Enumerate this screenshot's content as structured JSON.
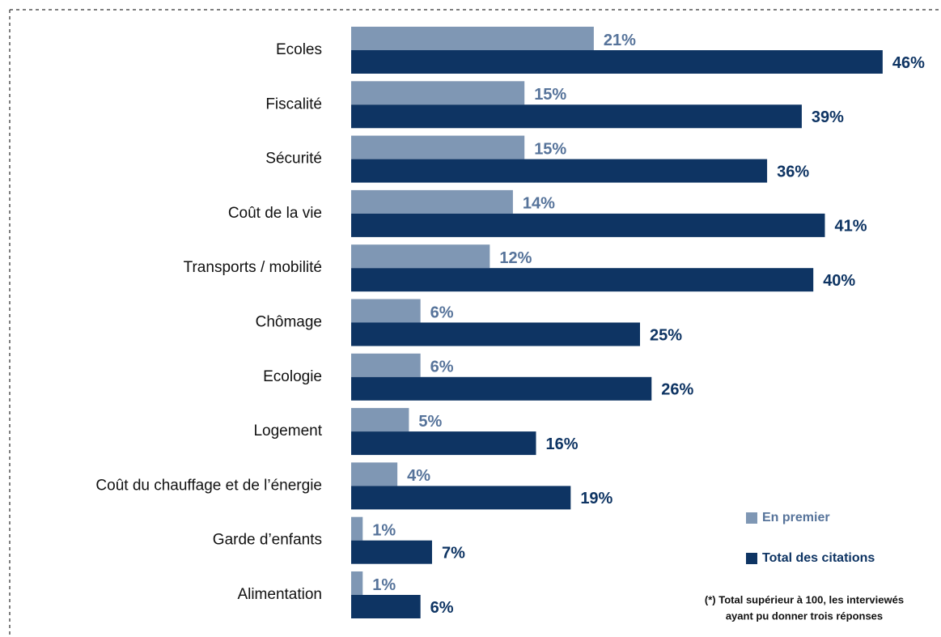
{
  "chart_data": {
    "type": "hbar",
    "categories": [
      "Ecoles",
      "Fiscalité",
      "Sécurité",
      "Coût de la vie",
      "Transports / mobilité",
      "Chômage",
      "Ecologie",
      "Logement",
      "Coût du chauffage et de l’énergie",
      "Garde d’enfants",
      "Alimentation"
    ],
    "series": [
      {
        "name": "En premier",
        "color": "#7f97b4",
        "label_color": "#56739a",
        "values": [
          21,
          15,
          15,
          14,
          12,
          6,
          6,
          5,
          4,
          1,
          1
        ],
        "value_labels": [
          "21%",
          "15%",
          "15%",
          "14%",
          "12%",
          "6%",
          "6%",
          "5%",
          "4%",
          "1%",
          "1%"
        ]
      },
      {
        "name": "Total des citations",
        "color": "#0e3463",
        "label_color": "#0e3463",
        "values": [
          46,
          39,
          36,
          41,
          40,
          25,
          26,
          16,
          19,
          7,
          6
        ],
        "value_labels": [
          "46%",
          "39%",
          "36%",
          "41%",
          "40%",
          "25%",
          "26%",
          "16%",
          "19%",
          "7%",
          "6%"
        ]
      }
    ],
    "note": [
      "(*) Total supérieur à 100, les interviewés",
      "ayant pu donner trois réponses"
    ]
  }
}
